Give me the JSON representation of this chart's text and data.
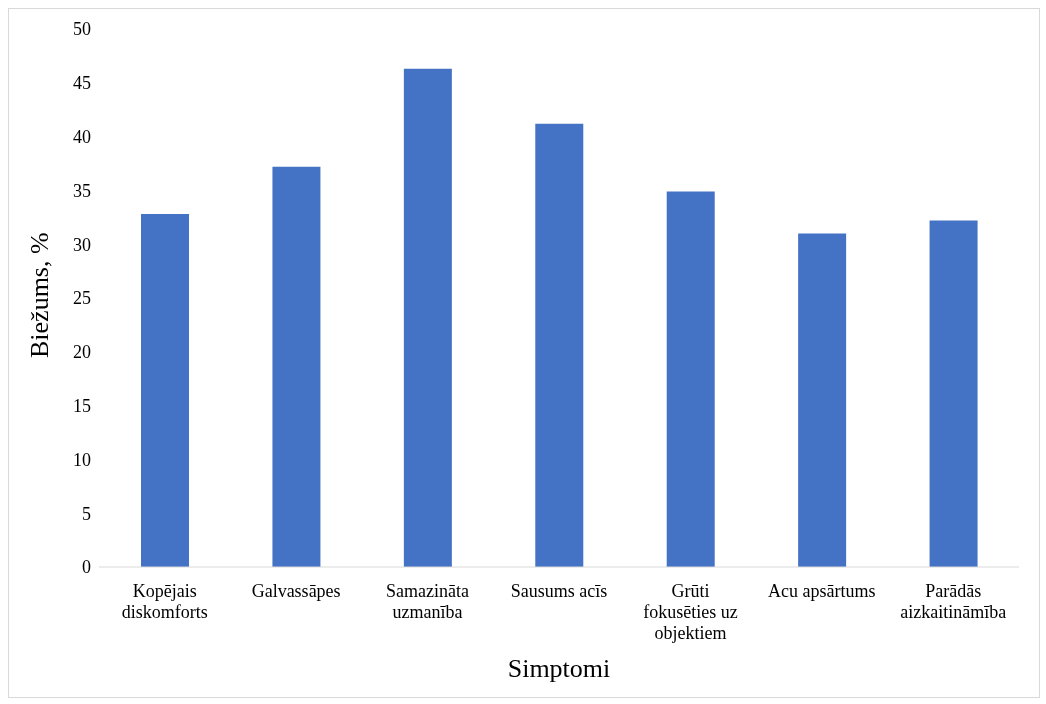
{
  "chart_data": {
    "type": "bar",
    "xlabel": "Simptomi",
    "ylabel": "Biežums, %",
    "categories": [
      "Kopējais diskomforts",
      "Galvassāpes",
      "Samazināta uzmanība",
      "Sausums acīs",
      "Grūti fokusēties uz objektiem",
      "Acu apsārtums",
      "Parādās aizkaitināmība"
    ],
    "values": [
      32.8,
      37.2,
      46.3,
      41.2,
      34.9,
      31.0,
      32.2
    ],
    "color": "#4472c4",
    "ylim": [
      0,
      50
    ],
    "yticks": [
      0,
      5,
      10,
      15,
      20,
      25,
      30,
      35,
      40,
      45,
      50
    ],
    "grid": false,
    "legend": false
  }
}
